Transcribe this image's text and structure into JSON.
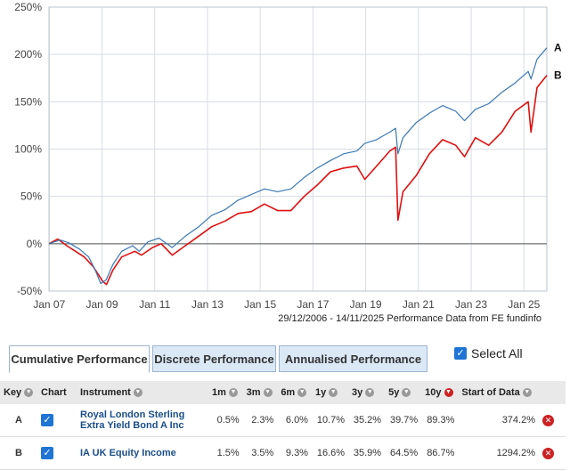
{
  "chart_data": {
    "type": "line",
    "y_unit": "%",
    "ylim": [
      -50,
      250
    ],
    "y_ticks": [
      "250%",
      "200%",
      "150%",
      "100%",
      "50%",
      "0%",
      "-50%"
    ],
    "y_tick_values": [
      250,
      200,
      150,
      100,
      50,
      0,
      -50
    ],
    "x_ticks": [
      "Jan 07",
      "Jan 09",
      "Jan 11",
      "Jan 13",
      "Jan 15",
      "Jan 17",
      "Jan 19",
      "Jan 21",
      "Jan 23",
      "Jan 25"
    ],
    "x_tick_years": [
      2007,
      2009,
      2011,
      2013,
      2015,
      2017,
      2019,
      2021,
      2023,
      2025
    ],
    "xlim": [
      "2006-12-29",
      "2025-11-14"
    ],
    "grid": true,
    "series": [
      {
        "name": "A",
        "color": "#3a78b5",
        "points": [
          [
            "2006-12-29",
            0
          ],
          [
            "2007-06-01",
            4
          ],
          [
            "2007-10-01",
            1
          ],
          [
            "2008-03-01",
            -6
          ],
          [
            "2008-07-01",
            -14
          ],
          [
            "2008-10-01",
            -28
          ],
          [
            "2008-12-15",
            -42
          ],
          [
            "2009-03-01",
            -38
          ],
          [
            "2009-06-01",
            -22
          ],
          [
            "2009-10-01",
            -8
          ],
          [
            "2010-03-01",
            -2
          ],
          [
            "2010-06-01",
            -8
          ],
          [
            "2010-10-01",
            2
          ],
          [
            "2011-03-01",
            6
          ],
          [
            "2011-09-01",
            -4
          ],
          [
            "2012-03-01",
            8
          ],
          [
            "2012-09-01",
            18
          ],
          [
            "2013-03-01",
            30
          ],
          [
            "2013-09-01",
            36
          ],
          [
            "2014-03-01",
            46
          ],
          [
            "2014-09-01",
            52
          ],
          [
            "2015-03-01",
            58
          ],
          [
            "2015-09-01",
            55
          ],
          [
            "2016-03-01",
            58
          ],
          [
            "2016-09-01",
            70
          ],
          [
            "2017-03-01",
            80
          ],
          [
            "2017-09-01",
            88
          ],
          [
            "2018-03-01",
            95
          ],
          [
            "2018-09-01",
            98
          ],
          [
            "2018-12-20",
            106
          ],
          [
            "2019-06-01",
            110
          ],
          [
            "2019-12-01",
            118
          ],
          [
            "2020-02-20",
            122
          ],
          [
            "2020-03-23",
            95
          ],
          [
            "2020-06-01",
            112
          ],
          [
            "2020-12-01",
            128
          ],
          [
            "2021-06-01",
            138
          ],
          [
            "2021-12-01",
            146
          ],
          [
            "2022-06-01",
            140
          ],
          [
            "2022-10-01",
            130
          ],
          [
            "2023-03-01",
            142
          ],
          [
            "2023-09-01",
            148
          ],
          [
            "2024-03-01",
            160
          ],
          [
            "2024-09-01",
            170
          ],
          [
            "2025-03-01",
            182
          ],
          [
            "2025-04-08",
            174
          ],
          [
            "2025-07-01",
            195
          ],
          [
            "2025-11-14",
            207
          ]
        ]
      },
      {
        "name": "B",
        "color": "#e01010",
        "points": [
          [
            "2006-12-29",
            0
          ],
          [
            "2007-05-01",
            5
          ],
          [
            "2007-09-01",
            -2
          ],
          [
            "2008-01-01",
            -8
          ],
          [
            "2008-05-01",
            -14
          ],
          [
            "2008-09-01",
            -24
          ],
          [
            "2009-01-15",
            -40
          ],
          [
            "2009-03-05",
            -43
          ],
          [
            "2009-06-01",
            -28
          ],
          [
            "2009-10-01",
            -14
          ],
          [
            "2010-04-01",
            -8
          ],
          [
            "2010-07-01",
            -12
          ],
          [
            "2010-12-01",
            -4
          ],
          [
            "2011-04-01",
            0
          ],
          [
            "2011-09-01",
            -12
          ],
          [
            "2012-03-01",
            -2
          ],
          [
            "2012-09-01",
            8
          ],
          [
            "2013-03-01",
            18
          ],
          [
            "2013-09-01",
            24
          ],
          [
            "2014-03-01",
            32
          ],
          [
            "2014-09-01",
            34
          ],
          [
            "2015-03-01",
            42
          ],
          [
            "2015-09-01",
            35
          ],
          [
            "2016-03-01",
            35
          ],
          [
            "2016-09-01",
            50
          ],
          [
            "2017-03-01",
            62
          ],
          [
            "2017-09-01",
            76
          ],
          [
            "2018-03-01",
            80
          ],
          [
            "2018-09-01",
            82
          ],
          [
            "2018-12-20",
            68
          ],
          [
            "2019-06-01",
            82
          ],
          [
            "2019-12-01",
            98
          ],
          [
            "2020-02-20",
            102
          ],
          [
            "2020-03-23",
            25
          ],
          [
            "2020-06-01",
            55
          ],
          [
            "2020-12-01",
            72
          ],
          [
            "2021-06-01",
            95
          ],
          [
            "2021-12-01",
            110
          ],
          [
            "2022-06-01",
            104
          ],
          [
            "2022-10-01",
            92
          ],
          [
            "2023-03-01",
            112
          ],
          [
            "2023-09-01",
            104
          ],
          [
            "2024-03-01",
            118
          ],
          [
            "2024-09-01",
            140
          ],
          [
            "2025-03-01",
            150
          ],
          [
            "2025-04-08",
            118
          ],
          [
            "2025-07-01",
            165
          ],
          [
            "2025-11-14",
            178
          ]
        ]
      }
    ],
    "source": "29/12/2006 - 14/11/2025 Performance Data from FE fundinfo"
  },
  "tabs": {
    "cumulative": "Cumulative Performance",
    "discrete": "Discrete Performance",
    "annualised": "Annualised Performance"
  },
  "select_all_label": "Select All",
  "table": {
    "headers": {
      "key": "Key",
      "chart": "Chart",
      "instrument": "Instrument",
      "m1": "1m",
      "m3": "3m",
      "m6": "6m",
      "y1": "1y",
      "y3": "3y",
      "y5": "5y",
      "y10": "10y",
      "start": "Start of Data"
    },
    "rows": [
      {
        "key": "A",
        "instrument": "Royal London Sterling Extra Yield Bond A Inc",
        "m1": "0.5%",
        "m3": "2.3%",
        "m6": "6.0%",
        "y1": "10.7%",
        "y3": "35.2%",
        "y5": "39.7%",
        "y10": "89.3%",
        "start": "374.2%"
      },
      {
        "key": "B",
        "instrument": "IA UK Equity Income",
        "m1": "1.5%",
        "m3": "3.5%",
        "m6": "9.3%",
        "y1": "16.6%",
        "y3": "35.9%",
        "y5": "64.5%",
        "y10": "86.7%",
        "start": "1294.2%"
      }
    ]
  }
}
